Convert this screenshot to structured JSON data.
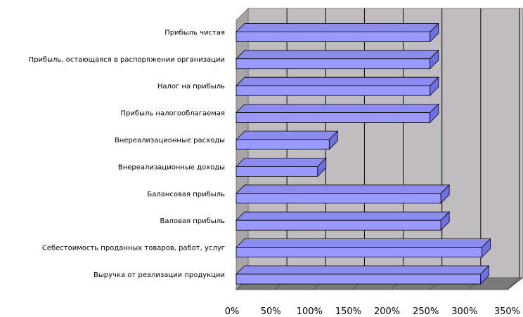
{
  "chart_data": {
    "type": "bar",
    "orientation": "horizontal",
    "three_d": true,
    "categories": [
      "Выручка от реализации продукции",
      "Себестоимость проданных товаров, работ, услуг",
      "Валовая прибыль",
      "Балансовая прибыль",
      "Внереализационные доходы",
      "Внереализационные расходы",
      "Прибыль налогооблагаемая",
      "Налог на прибыль",
      "Прибыль, остающаяся в распоряжении организации",
      "Прибыль чистая"
    ],
    "values": [
      315,
      317,
      264,
      264,
      105,
      120,
      250,
      250,
      250,
      250
    ],
    "x_ticks": [
      "0%",
      "50%",
      "100%",
      "150%",
      "200%",
      "250%",
      "300%",
      "350%"
    ],
    "xlim": [
      0,
      350
    ],
    "grid": true,
    "legend": "none",
    "colors": {
      "bar_face": "#9999ff",
      "bar_top": "#8c8cee",
      "bar_side": "#7070dd",
      "wall": "#c0bcc0",
      "side_wall": "#a8a4a8",
      "floor": "#7a7878",
      "gridline": "#000000"
    }
  }
}
